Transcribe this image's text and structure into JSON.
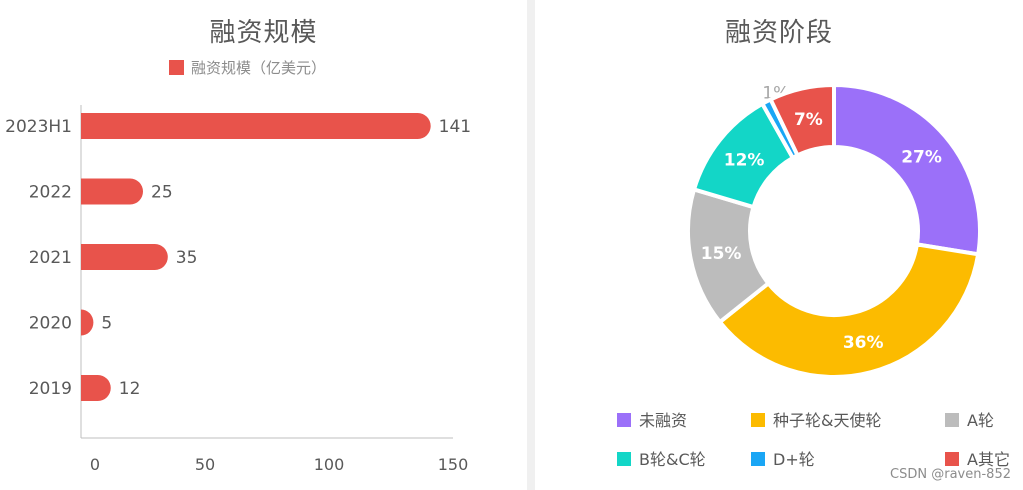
{
  "colors": {
    "bar": "#e8534b",
    "axis": "#bfbfbf",
    "text": "#595959",
    "pie": [
      "#9b70f9",
      "#fcbb00",
      "#bcbcbc",
      "#13d6c7",
      "#1aa6f5",
      "#e8534b"
    ]
  },
  "watermark": "CSDN @raven-852",
  "chart_data": [
    {
      "type": "bar",
      "orientation": "horizontal",
      "title": "融资规模",
      "legend": {
        "label": "融资规模（亿美元）",
        "position": "top"
      },
      "categories": [
        "2023H1",
        "2022",
        "2021",
        "2020",
        "2019"
      ],
      "values": [
        141,
        25,
        35,
        5,
        12
      ],
      "xlim": [
        0,
        150
      ],
      "xticks": [
        0,
        50,
        100,
        150
      ],
      "grid": false
    },
    {
      "type": "pie",
      "variant": "donut",
      "title": "融资阶段",
      "legend_position": "bottom",
      "slices": [
        {
          "label": "未融资",
          "value": 27,
          "text": "27%"
        },
        {
          "label": "种子轮&天使轮",
          "value": 36,
          "text": "36%"
        },
        {
          "label": "A轮",
          "value": 15,
          "text": "15%"
        },
        {
          "label": "B轮&C轮",
          "value": 12,
          "text": "12%"
        },
        {
          "label": "D+轮",
          "value": 1,
          "text": "1%"
        },
        {
          "label": "A其它",
          "value": 7,
          "text": "7%"
        }
      ]
    }
  ]
}
